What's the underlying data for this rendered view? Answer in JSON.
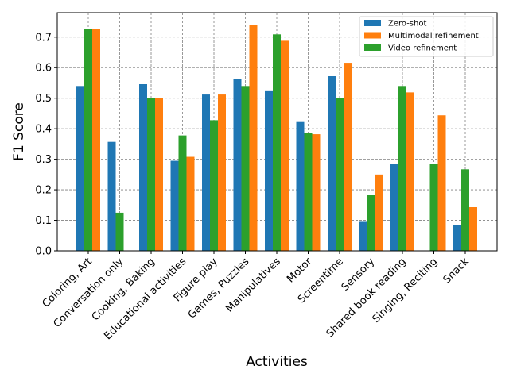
{
  "chart_data": {
    "type": "bar",
    "title": "",
    "xlabel": "Activities",
    "ylabel": "F1 Score",
    "ylim": [
      0,
      0.78
    ],
    "yticks": [
      0.0,
      0.1,
      0.2,
      0.3,
      0.4,
      0.5,
      0.6,
      0.7
    ],
    "ytick_labels": [
      "0.0",
      "0.1",
      "0.2",
      "0.3",
      "0.4",
      "0.5",
      "0.6",
      "0.7"
    ],
    "grid": true,
    "legend_position": "top-right",
    "categories": [
      "Coloring, Art",
      "Conversation only",
      "Cooking, Baking",
      "Educational activities",
      "Figure play",
      "Games, Puzzles",
      "Manipulatives",
      "Motor",
      "Screentime",
      "Sensory",
      "Shared book reading",
      "Singing, Reciting",
      "Snack"
    ],
    "series": [
      {
        "name": "Zero-shot",
        "color": "#1f77b4",
        "values": [
          0.54,
          0.357,
          0.546,
          0.295,
          0.512,
          0.562,
          0.523,
          0.422,
          0.572,
          0.095,
          0.286,
          0.0,
          0.085
        ]
      },
      {
        "name": "Video refinement",
        "color": "#2ca02c",
        "values": [
          0.727,
          0.125,
          0.5,
          0.378,
          0.428,
          0.54,
          0.709,
          0.385,
          0.5,
          0.182,
          0.54,
          0.286,
          0.267
        ]
      },
      {
        "name": "Multimodal refinement",
        "color": "#ff7f0e",
        "values": [
          0.727,
          0.0,
          0.5,
          0.308,
          0.512,
          0.74,
          0.688,
          0.382,
          0.616,
          0.25,
          0.519,
          0.444,
          0.143
        ]
      }
    ],
    "legend_order": [
      "Zero-shot",
      "Multimodal refinement",
      "Video refinement"
    ]
  }
}
